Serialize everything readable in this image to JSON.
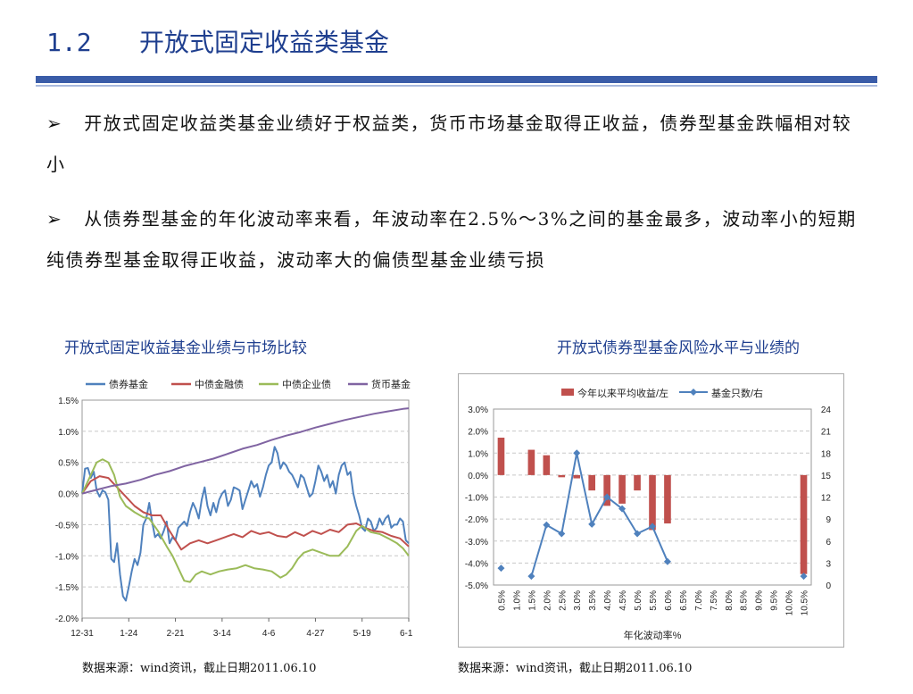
{
  "slide": {
    "section_number": "1.2",
    "section_title": "开放式固定收益类基金",
    "bullet1_marker": "➢",
    "bullet1": "开放式固定收益类基金业绩好于权益类，货币市场基金取得正收益，债券型基金跌幅相对较小",
    "bullet2_marker": "➢",
    "bullet2": "从债券型基金的年化波动率来看，年波动率在2.5%～3%之间的基金最多，波动率小的短期纯债券型基金取得正收益，波动率大的偏债型基金业绩亏损",
    "left_chart_title": "开放式固定收益基金业绩与市场比较",
    "right_chart_title": "开放式债券型基金风险水平与业绩的",
    "left_source": "数据来源：wind资讯，截止日期2011.06.10",
    "right_source": "数据来源：wind资讯，截止日期2011.06.10"
  },
  "colors": {
    "bond_fund": "#4f81bd",
    "cb_financial": "#c0504d",
    "cb_corporate": "#9bbb59",
    "money_fund": "#8064a2",
    "bar": "#c0504d",
    "count_line": "#4f81bd"
  },
  "chart_data": [
    {
      "type": "line",
      "title": "开放式固定收益基金业绩与市场比较",
      "x_ticks": [
        "12-31",
        "1-24",
        "2-21",
        "3-14",
        "4-6",
        "4-27",
        "5-19",
        "6-10"
      ],
      "y_ticks": [
        "1.5%",
        "1.0%",
        "0.5%",
        "0.0%",
        "-0.5%",
        "-1.0%",
        "-1.5%",
        "-2.0%"
      ],
      "ylim": [
        -2.0,
        1.5
      ],
      "grid": true,
      "legend_position": "top",
      "x_index_range": [
        0,
        112
      ],
      "series": [
        {
          "name": "债券基金",
          "color_key": "bond_fund",
          "points": [
            [
              0,
              0
            ],
            [
              1,
              0.4
            ],
            [
              2,
              0.41
            ],
            [
              3,
              0.25
            ],
            [
              4,
              0.35
            ],
            [
              5,
              0.05
            ],
            [
              6,
              -0.05
            ],
            [
              7,
              0.05
            ],
            [
              8,
              0.02
            ],
            [
              9,
              -0.1
            ],
            [
              10,
              -1.05
            ],
            [
              11,
              -1.1
            ],
            [
              12,
              -0.8
            ],
            [
              13,
              -1.3
            ],
            [
              14,
              -1.65
            ],
            [
              15,
              -1.72
            ],
            [
              16,
              -1.5
            ],
            [
              17,
              -1.25
            ],
            [
              18,
              -1.05
            ],
            [
              19,
              -1.15
            ],
            [
              20,
              -0.95
            ],
            [
              21,
              -0.5
            ],
            [
              22,
              -0.4
            ],
            [
              23,
              -0.15
            ],
            [
              24,
              -0.45
            ],
            [
              25,
              -0.7
            ],
            [
              26,
              -0.65
            ],
            [
              27,
              -0.72
            ],
            [
              28,
              -0.6
            ],
            [
              29,
              -0.45
            ],
            [
              30,
              -0.8
            ],
            [
              31,
              -0.7
            ],
            [
              32,
              -0.75
            ],
            [
              33,
              -0.55
            ],
            [
              34,
              -0.5
            ],
            [
              35,
              -0.45
            ],
            [
              36,
              -0.52
            ],
            [
              37,
              -0.3
            ],
            [
              38,
              -0.15
            ],
            [
              39,
              -0.25
            ],
            [
              40,
              -0.4
            ],
            [
              41,
              -0.1
            ],
            [
              42,
              0.1
            ],
            [
              43,
              -0.2
            ],
            [
              44,
              -0.35
            ],
            [
              45,
              -0.15
            ],
            [
              46,
              -0.3
            ],
            [
              47,
              -0.1
            ],
            [
              48,
              0.0
            ],
            [
              49,
              0.05
            ],
            [
              50,
              -0.2
            ],
            [
              51,
              -0.1
            ],
            [
              52,
              0.1
            ],
            [
              53,
              0.08
            ],
            [
              54,
              0.05
            ],
            [
              55,
              -0.25
            ],
            [
              56,
              -0.1
            ],
            [
              57,
              0.05
            ],
            [
              58,
              0.2
            ],
            [
              59,
              0.1
            ],
            [
              60,
              0.15
            ],
            [
              61,
              -0.05
            ],
            [
              62,
              0.1
            ],
            [
              63,
              0.3
            ],
            [
              64,
              0.45
            ],
            [
              65,
              0.5
            ],
            [
              66,
              0.75
            ],
            [
              67,
              0.65
            ],
            [
              68,
              0.4
            ],
            [
              69,
              0.5
            ],
            [
              70,
              0.45
            ],
            [
              71,
              0.35
            ],
            [
              72,
              0.3
            ],
            [
              73,
              0.2
            ],
            [
              74,
              0.1
            ],
            [
              75,
              0.3
            ],
            [
              76,
              0.25
            ],
            [
              77,
              0.1
            ],
            [
              78,
              -0.05
            ],
            [
              79,
              0.0
            ],
            [
              80,
              0.2
            ],
            [
              81,
              0.45
            ],
            [
              82,
              0.35
            ],
            [
              83,
              0.2
            ],
            [
              84,
              0.3
            ],
            [
              85,
              0.1
            ],
            [
              86,
              0.2
            ],
            [
              87,
              0.0
            ],
            [
              88,
              0.3
            ],
            [
              89,
              0.45
            ],
            [
              90,
              0.5
            ],
            [
              91,
              0.3
            ],
            [
              92,
              0.35
            ],
            [
              93,
              0.0
            ],
            [
              94,
              -0.2
            ],
            [
              95,
              -0.35
            ],
            [
              96,
              -0.55
            ],
            [
              97,
              -0.6
            ],
            [
              98,
              -0.4
            ],
            [
              99,
              -0.45
            ],
            [
              100,
              -0.6
            ],
            [
              101,
              -0.55
            ],
            [
              102,
              -0.4
            ],
            [
              103,
              -0.5
            ],
            [
              104,
              -0.4
            ],
            [
              105,
              -0.35
            ],
            [
              106,
              -0.55
            ],
            [
              107,
              -0.5
            ],
            [
              108,
              -0.5
            ],
            [
              109,
              -0.4
            ],
            [
              110,
              -0.45
            ],
            [
              111,
              -0.75
            ],
            [
              112,
              -0.8
            ]
          ]
        },
        {
          "name": "中债金融债",
          "color_key": "cb_financial",
          "points": [
            [
              0,
              0
            ],
            [
              3,
              0.2
            ],
            [
              6,
              0.28
            ],
            [
              9,
              0.25
            ],
            [
              12,
              0.1
            ],
            [
              15,
              -0.05
            ],
            [
              18,
              -0.2
            ],
            [
              21,
              -0.3
            ],
            [
              24,
              -0.35
            ],
            [
              27,
              -0.35
            ],
            [
              30,
              -0.6
            ],
            [
              32,
              -0.75
            ],
            [
              34,
              -0.9
            ],
            [
              37,
              -0.8
            ],
            [
              40,
              -0.75
            ],
            [
              43,
              -0.8
            ],
            [
              46,
              -0.75
            ],
            [
              49,
              -0.7
            ],
            [
              52,
              -0.65
            ],
            [
              55,
              -0.7
            ],
            [
              58,
              -0.6
            ],
            [
              61,
              -0.65
            ],
            [
              64,
              -0.62
            ],
            [
              67,
              -0.68
            ],
            [
              70,
              -0.7
            ],
            [
              73,
              -0.62
            ],
            [
              76,
              -0.68
            ],
            [
              79,
              -0.6
            ],
            [
              82,
              -0.65
            ],
            [
              85,
              -0.58
            ],
            [
              88,
              -0.62
            ],
            [
              91,
              -0.5
            ],
            [
              94,
              -0.48
            ],
            [
              97,
              -0.55
            ],
            [
              100,
              -0.6
            ],
            [
              103,
              -0.62
            ],
            [
              106,
              -0.68
            ],
            [
              109,
              -0.72
            ],
            [
              112,
              -0.85
            ]
          ]
        },
        {
          "name": "中债企业债",
          "color_key": "cb_corporate",
          "points": [
            [
              0,
              0
            ],
            [
              3,
              0.3
            ],
            [
              5,
              0.5
            ],
            [
              7,
              0.55
            ],
            [
              9,
              0.5
            ],
            [
              11,
              0.3
            ],
            [
              13,
              -0.05
            ],
            [
              15,
              -0.2
            ],
            [
              18,
              -0.3
            ],
            [
              21,
              -0.38
            ],
            [
              23,
              -0.4
            ],
            [
              26,
              -0.6
            ],
            [
              29,
              -0.85
            ],
            [
              31,
              -1.0
            ],
            [
              33,
              -1.2
            ],
            [
              35,
              -1.4
            ],
            [
              37,
              -1.42
            ],
            [
              39,
              -1.3
            ],
            [
              41,
              -1.25
            ],
            [
              44,
              -1.3
            ],
            [
              47,
              -1.25
            ],
            [
              50,
              -1.22
            ],
            [
              53,
              -1.2
            ],
            [
              56,
              -1.15
            ],
            [
              59,
              -1.2
            ],
            [
              62,
              -1.22
            ],
            [
              65,
              -1.25
            ],
            [
              68,
              -1.35
            ],
            [
              70,
              -1.3
            ],
            [
              72,
              -1.2
            ],
            [
              74,
              -1.05
            ],
            [
              76,
              -0.95
            ],
            [
              79,
              -0.9
            ],
            [
              82,
              -0.95
            ],
            [
              85,
              -1.0
            ],
            [
              88,
              -1.0
            ],
            [
              91,
              -0.85
            ],
            [
              94,
              -0.6
            ],
            [
              96,
              -0.52
            ],
            [
              99,
              -0.62
            ],
            [
              102,
              -0.65
            ],
            [
              105,
              -0.72
            ],
            [
              108,
              -0.8
            ],
            [
              110,
              -0.88
            ],
            [
              112,
              -1.0
            ]
          ]
        },
        {
          "name": "货币基金",
          "color_key": "money_fund",
          "points": [
            [
              0,
              0
            ],
            [
              5,
              0.06
            ],
            [
              10,
              0.12
            ],
            [
              15,
              0.16
            ],
            [
              20,
              0.22
            ],
            [
              25,
              0.3
            ],
            [
              30,
              0.36
            ],
            [
              35,
              0.44
            ],
            [
              40,
              0.5
            ],
            [
              45,
              0.56
            ],
            [
              50,
              0.64
            ],
            [
              55,
              0.72
            ],
            [
              60,
              0.78
            ],
            [
              65,
              0.86
            ],
            [
              70,
              0.93
            ],
            [
              75,
              0.99
            ],
            [
              80,
              1.06
            ],
            [
              85,
              1.12
            ],
            [
              90,
              1.18
            ],
            [
              95,
              1.23
            ],
            [
              100,
              1.28
            ],
            [
              105,
              1.32
            ],
            [
              110,
              1.36
            ],
            [
              112,
              1.37
            ]
          ]
        }
      ]
    },
    {
      "type": "bar+line",
      "title": "开放式债券型基金风险水平与业绩的",
      "xlabel": "年化波动率%",
      "categories": [
        "0.5%",
        "1.0%",
        "1.5%",
        "2.0%",
        "2.5%",
        "3.0%",
        "3.5%",
        "4.0%",
        "4.5%",
        "5.0%",
        "5.5%",
        "6.0%",
        "6.5%",
        "7.0%",
        "7.5%",
        "8.0%",
        "8.5%",
        "9.0%",
        "9.5%",
        "10.0%",
        "10.5%"
      ],
      "left_axis": {
        "ticks": [
          "3.0%",
          "2.0%",
          "1.0%",
          "0.0%",
          "-1.0%",
          "-2.0%",
          "-3.0%",
          "-4.0%",
          "-5.0%"
        ],
        "range": [
          -5.0,
          3.0
        ]
      },
      "right_axis": {
        "ticks": [
          "24",
          "21",
          "18",
          "15",
          "12",
          "9",
          "6",
          "3",
          "0"
        ],
        "range": [
          0,
          24
        ]
      },
      "legend_position": "top",
      "series": [
        {
          "name": "今年以来平均收益/左",
          "kind": "bar",
          "color_key": "bar",
          "values": [
            1.7,
            null,
            1.15,
            0.9,
            -0.1,
            -0.15,
            -0.7,
            -1.4,
            -1.3,
            -0.7,
            -2.5,
            -2.2,
            null,
            null,
            null,
            null,
            null,
            null,
            null,
            null,
            -4.5
          ]
        },
        {
          "name": "基金只数/右",
          "kind": "line",
          "color_key": "count_line",
          "values": [
            2.3,
            null,
            1.2,
            8.2,
            7.0,
            18.0,
            8.3,
            12.0,
            10.4,
            7.0,
            8.0,
            3.2,
            null,
            null,
            null,
            null,
            null,
            null,
            null,
            null,
            1.2
          ]
        }
      ]
    }
  ]
}
